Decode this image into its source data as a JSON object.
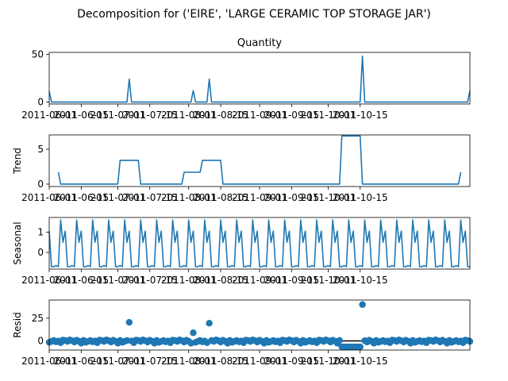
{
  "figure": {
    "title": "Decomposition for ('EIRE', 'LARGE CERAMIC TOP STORAGE JAR')"
  },
  "colors": {
    "line": "#1f77b4",
    "zero_line": "#000000",
    "axis": "#000000"
  },
  "chart_data": [
    {
      "type": "line",
      "title": "Quantity",
      "ylabel": "",
      "ylim": [
        -2,
        52
      ],
      "yticks": [
        0,
        50
      ],
      "xlabels": [
        "2011-06-01",
        "2011-06-15",
        "2011-07-01",
        "2011-07-15",
        "2011-08-01",
        "2011-08-15",
        "2011-09-01",
        "2011-09-15",
        "2011-10-01",
        "2011-10-15"
      ],
      "series": [
        {
          "points": [
            [
              0,
              11
            ],
            [
              1,
              0
            ],
            [
              34,
              0
            ],
            [
              35,
              24
            ],
            [
              36,
              0
            ],
            [
              62,
              0
            ],
            [
              63,
              12
            ],
            [
              64,
              0
            ],
            [
              69,
              0
            ],
            [
              70,
              24
            ],
            [
              71,
              0
            ],
            [
              136,
              0
            ],
            [
              137,
              48
            ],
            [
              138,
              0
            ],
            [
              183,
              0
            ],
            [
              184,
              12
            ]
          ]
        }
      ]
    },
    {
      "type": "line",
      "title": "",
      "ylabel": "Trend",
      "ylim": [
        -0.35,
        7.05
      ],
      "yticks": [
        0,
        5
      ],
      "xlabels": [
        "2011-06-01",
        "2011-06-15",
        "2011-07-01",
        "2011-07-15",
        "2011-08-01",
        "2011-08-15",
        "2011-09-01",
        "2011-09-15",
        "2011-10-01",
        "2011-10-15"
      ],
      "series": [
        {
          "points": [
            [
              4,
              1.7
            ],
            [
              5,
              0
            ],
            [
              30,
              0
            ],
            [
              31,
              3.4
            ],
            [
              39,
              3.4
            ],
            [
              40,
              0
            ],
            [
              58,
              0
            ],
            [
              59,
              1.7
            ],
            [
              66,
              1.7
            ],
            [
              67,
              3.4
            ],
            [
              75,
              3.4
            ],
            [
              76,
              0
            ],
            [
              127,
              0
            ],
            [
              128,
              6.9
            ],
            [
              136,
              6.9
            ],
            [
              137,
              0
            ],
            [
              179,
              0
            ],
            [
              180,
              1.7
            ]
          ]
        }
      ]
    },
    {
      "type": "line",
      "title": "",
      "ylabel": "Seasonal",
      "ylim": [
        -0.82,
        1.72
      ],
      "yticks": [
        0,
        1
      ],
      "xlabels": [
        "2011-06-01",
        "2011-06-15",
        "2011-07-01",
        "2011-07-15",
        "2011-08-01",
        "2011-08-15",
        "2011-09-01",
        "2011-09-15",
        "2011-10-01",
        "2011-10-15"
      ],
      "pattern": [
        1.6,
        0.5,
        1.05,
        -0.7,
        -0.7,
        -0.65,
        -0.7
      ],
      "series": [
        {
          "points": [
            [
              0,
              1.05
            ],
            [
              1,
              -0.7
            ],
            [
              2,
              -0.7
            ],
            [
              3,
              -0.65
            ],
            [
              4,
              -0.7
            ]
          ]
        }
      ]
    },
    {
      "type": "scatter",
      "title": "",
      "ylabel": "Resid",
      "ylim": [
        -10,
        45
      ],
      "yticks": [
        0,
        25
      ],
      "zero_line": true,
      "xlabels": [
        "2011-06-01",
        "2011-06-15",
        "2011-07-01",
        "2011-07-15",
        "2011-08-01",
        "2011-08-15",
        "2011-09-01",
        "2011-09-15",
        "2011-10-01",
        "2011-10-15"
      ],
      "outliers": [
        [
          35,
          20.5
        ],
        [
          63,
          9
        ],
        [
          70,
          19.5
        ],
        [
          137,
          40
        ]
      ],
      "base": [
        -1.5,
        -0.5,
        0.5,
        -1,
        0,
        -2,
        1,
        0.5,
        -0.5,
        1.2,
        0.3,
        -1.2,
        0.8,
        -0.3,
        -2.5,
        0.6
      ]
    }
  ]
}
